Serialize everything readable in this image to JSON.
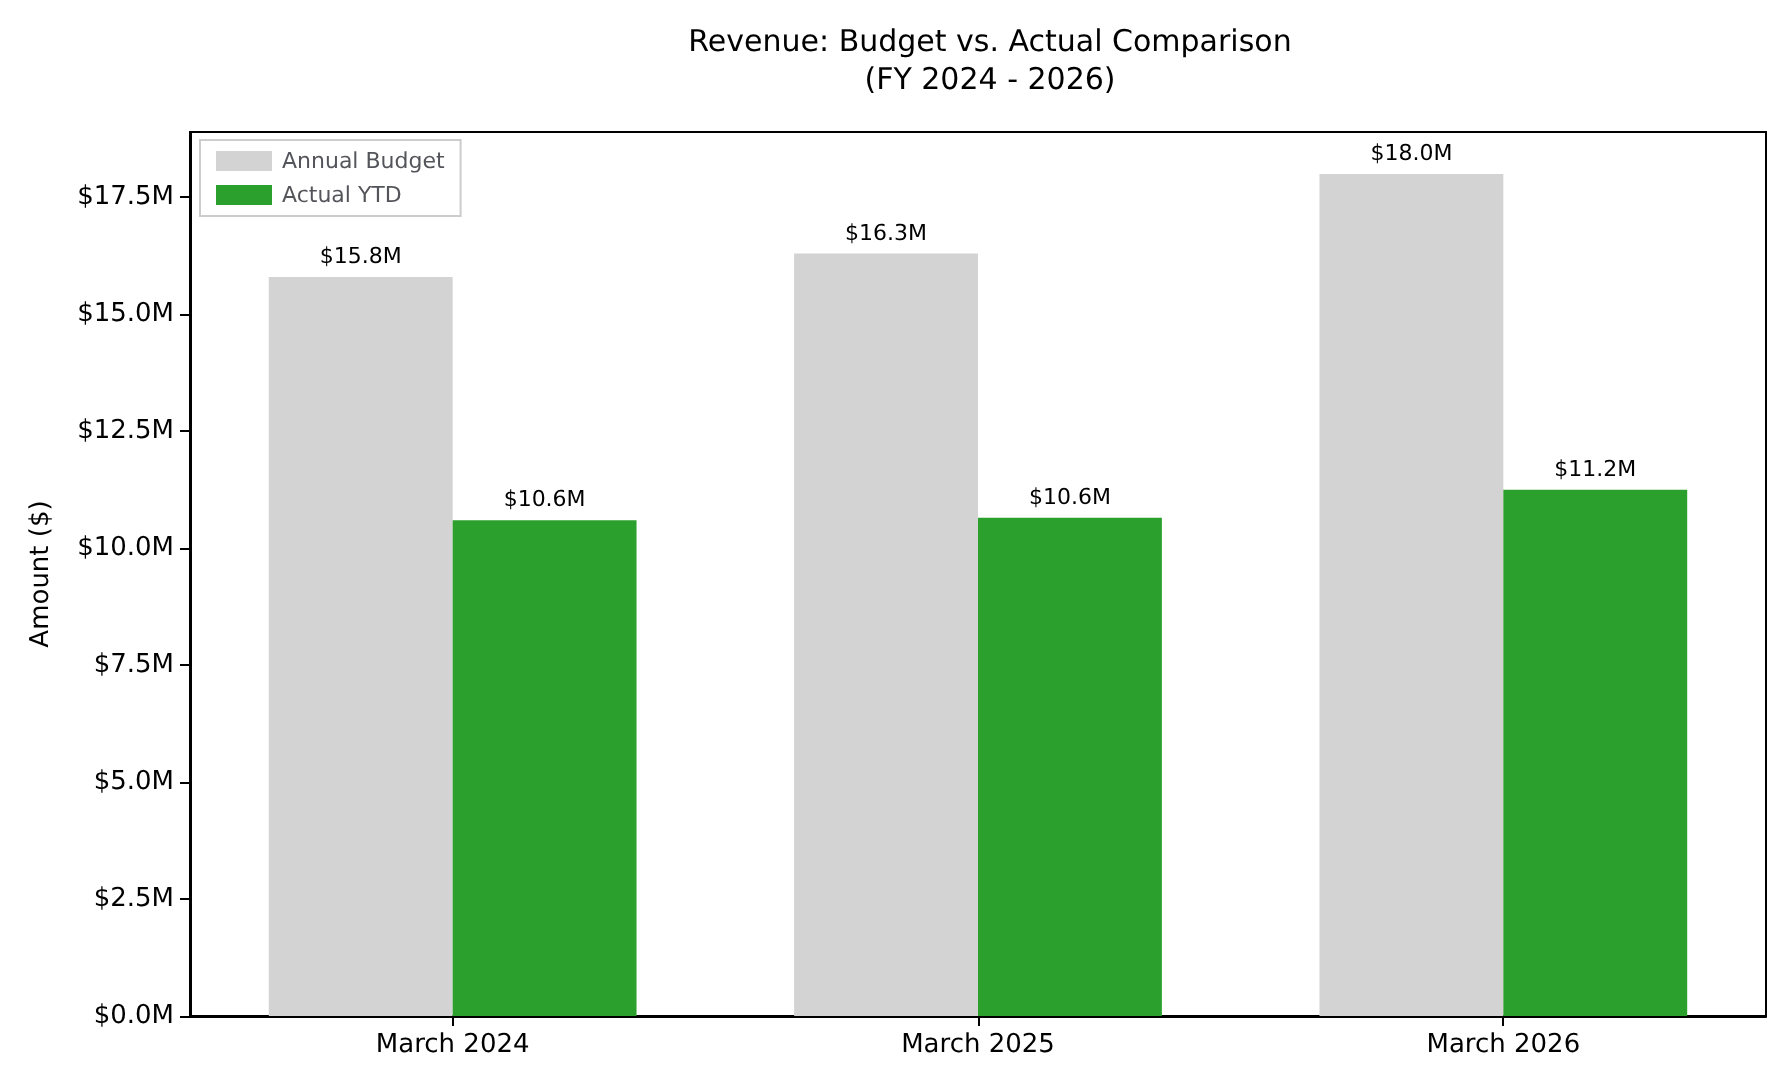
{
  "chart_data": {
    "type": "bar",
    "title": "Revenue: Budget vs. Actual Comparison\n(FY 2024 - 2026)",
    "ylabel": "Amount ($)",
    "categories": [
      "March 2024",
      "March 2025",
      "March 2026"
    ],
    "series": [
      {
        "name": "Annual Budget",
        "color": "#d3d3d3",
        "values": [
          15.8,
          16.3,
          18.0
        ],
        "value_labels": [
          "$15.8M",
          "$16.3M",
          "$18.0M"
        ]
      },
      {
        "name": "Actual YTD",
        "color": "#2ca02c",
        "values": [
          10.6,
          10.65,
          11.25
        ],
        "value_labels": [
          "$10.6M",
          "$10.6M",
          "$11.2M"
        ]
      }
    ],
    "ylim": [
      0,
      18.9
    ],
    "yticks": [
      {
        "value": 0,
        "label": "$0.0M"
      },
      {
        "value": 2.5,
        "label": "$2.5M"
      },
      {
        "value": 5,
        "label": "$5.0M"
      },
      {
        "value": 7.5,
        "label": "$7.5M"
      },
      {
        "value": 10,
        "label": "$10.0M"
      },
      {
        "value": 12.5,
        "label": "$12.5M"
      },
      {
        "value": 15,
        "label": "$15.0M"
      },
      {
        "value": 17.5,
        "label": "$17.5M"
      }
    ],
    "legend": "top left"
  }
}
